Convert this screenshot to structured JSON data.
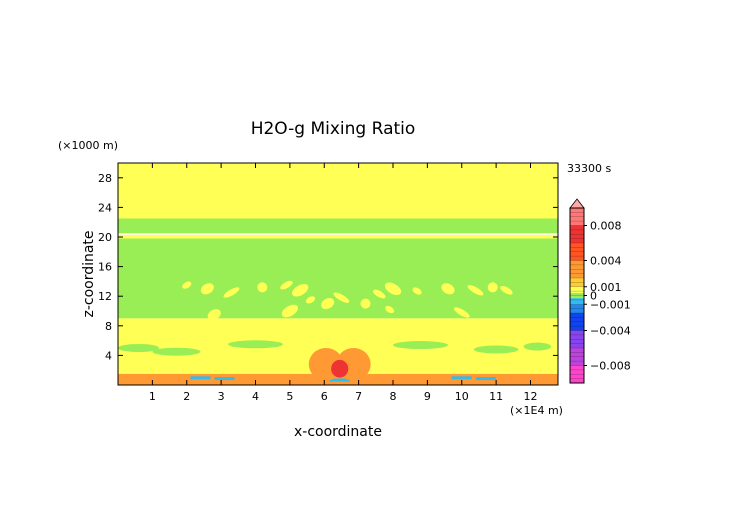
{
  "chart_data": {
    "type": "heatmap",
    "title": "H2O-g Mixing Ratio",
    "xlabel": "x-coordinate",
    "ylabel": "z-coordinate",
    "x_unit": "(×1E4 m)",
    "y_unit": "(×1000 m)",
    "time_label": "33300 s",
    "xlim": [
      0,
      12.8
    ],
    "ylim": [
      0,
      30
    ],
    "x_ticks": [
      1,
      2,
      3,
      4,
      5,
      6,
      7,
      8,
      9,
      10,
      11,
      12
    ],
    "y_ticks": [
      4,
      8,
      12,
      16,
      20,
      24,
      28
    ],
    "grid": false,
    "colorbar": {
      "placement": "right",
      "min": -0.01,
      "max": 0.01,
      "tick_labels": [
        {
          "value": 0.008,
          "label": "0.008"
        },
        {
          "value": 0.004,
          "label": "0.004"
        },
        {
          "value": 0.001,
          "label": "0.001"
        },
        {
          "value": 0,
          "label": "0"
        },
        {
          "value": -0.001,
          "label": "−0.001"
        },
        {
          "value": -0.004,
          "label": "−0.004"
        },
        {
          "value": -0.008,
          "label": "−0.008"
        }
      ],
      "colors": {
        "neg_deep": "#ff44cc",
        "neg_purple": "#8844ee",
        "neg_blue": "#1144ee",
        "neg_cyan": "#33bbee",
        "zero_green": "#99ee55",
        "pos_yellow": "#ffff55",
        "pos_orange": "#ff9933",
        "pos_red": "#ee3333",
        "pos_pink": "#ffaaaa"
      }
    },
    "field_regions": [
      {
        "name": "upper-background",
        "z": [
          22.5,
          30
        ],
        "level": "pos_yellow"
      },
      {
        "name": "tropopause-band",
        "z": [
          20.5,
          22.5
        ],
        "level": "zero_green"
      },
      {
        "name": "thin-line",
        "z": [
          19.8,
          20.3
        ],
        "level": "pos_yellow"
      },
      {
        "name": "mid-band",
        "z": [
          9,
          19.8
        ],
        "level": "zero_green"
      },
      {
        "name": "lower-layer",
        "z": [
          1.5,
          9
        ],
        "level": "pos_yellow"
      },
      {
        "name": "surface-layer",
        "z": [
          0,
          1.5
        ],
        "level": "pos_orange"
      }
    ],
    "features": [
      {
        "name": "central-plume-left",
        "x": 6.05,
        "z": 2.8,
        "rx": 0.5,
        "rz": 2.2,
        "level": "pos_orange"
      },
      {
        "name": "central-plume-right",
        "x": 6.85,
        "z": 2.8,
        "rx": 0.5,
        "rz": 2.2,
        "level": "pos_orange"
      },
      {
        "name": "plume-core",
        "x": 6.45,
        "z": 2.2,
        "rx": 0.25,
        "rz": 1.2,
        "level": "pos_red"
      }
    ]
  }
}
